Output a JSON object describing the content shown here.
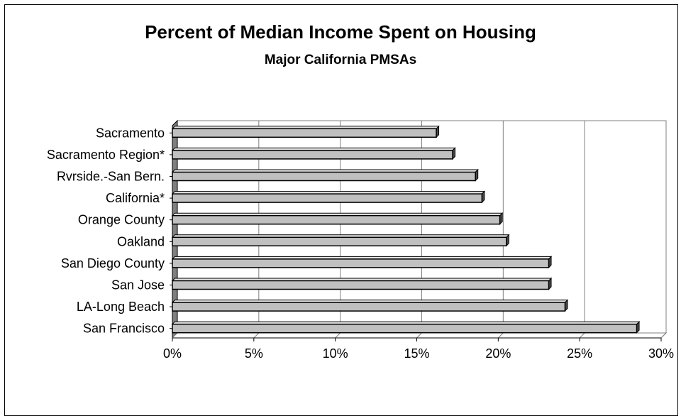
{
  "chart_data": {
    "type": "bar",
    "orientation": "horizontal",
    "title": "Percent of Median Income Spent on Housing",
    "subtitle": "Major California PMSAs",
    "categories": [
      "Sacramento",
      "Sacramento Region*",
      "Rvrside.-San Bern.",
      "California*",
      "Orange County",
      "Oakland",
      "San Diego County",
      "San Jose",
      "LA-Long Beach",
      "San Francisco"
    ],
    "values": [
      16.2,
      17.2,
      18.6,
      19.0,
      20.1,
      20.5,
      23.1,
      23.1,
      24.1,
      28.5
    ],
    "xlim": [
      0,
      30
    ],
    "xticks": [
      "0%",
      "5%",
      "10%",
      "15%",
      "20%",
      "25%",
      "30%"
    ],
    "grid": "vertical major gridlines",
    "style": "3-D bars",
    "colors": {
      "bar": "#c0c0c0",
      "bar_top": "#e4e4e4",
      "bar_side": "#4a4a4a",
      "grid": "#808080",
      "wall": "#ffffff"
    }
  }
}
